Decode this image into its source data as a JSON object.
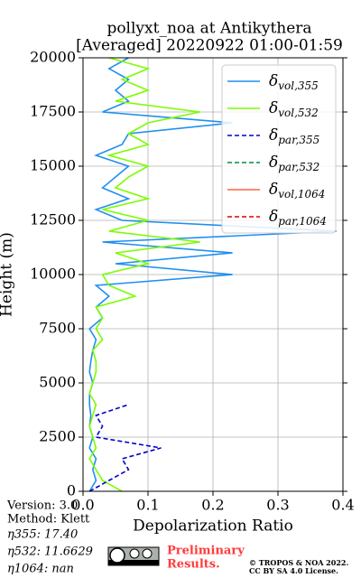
{
  "chart_data": {
    "type": "line",
    "title": "pollyxt_noa at Antikythera",
    "subtitle": "[Averaged] 20220922 01:00-01:59",
    "x_label": "Depolarization Ratio",
    "y_label": "Height (m)",
    "xlim": [
      0,
      0.4
    ],
    "ylim": [
      0,
      20000
    ],
    "xticks": [
      {
        "value": 0,
        "label": "0.0"
      },
      0.1,
      0.2,
      0.3,
      0.4
    ],
    "yticks": [
      0,
      2500,
      5000,
      7500,
      10000,
      12500,
      15000,
      17500,
      20000
    ],
    "grid": true,
    "legend": "upper right",
    "heights": [
      0,
      500,
      1000,
      1500,
      2000,
      2500,
      3000,
      3500,
      4000,
      4500,
      5000,
      5500,
      6000,
      6500,
      7000,
      7500,
      8000,
      8500,
      9000,
      9500,
      10000,
      10500,
      11000,
      11500,
      12000,
      12500,
      13000,
      13500,
      14000,
      14500,
      15000,
      15500,
      16000,
      16500,
      17000,
      17500,
      18000,
      18500,
      19000,
      19500,
      20000
    ],
    "series": [
      {
        "name": "δvol,355",
        "color": "#1f8ff0",
        "dash": "solid",
        "values": [
          0.01,
          0.02,
          0.015,
          0.02,
          0.01,
          0.015,
          0.01,
          0.012,
          0.01,
          0.01,
          0.015,
          0.01,
          0.012,
          0.015,
          0.02,
          0.01,
          0.03,
          0.02,
          0.04,
          0.02,
          0.23,
          0.05,
          0.23,
          0.03,
          0.39,
          0.06,
          0.02,
          0.07,
          0.03,
          0.05,
          0.07,
          0.02,
          0.06,
          0.07,
          0.23,
          0.03,
          0.07,
          0.05,
          0.07,
          0.04,
          0.07
        ]
      },
      {
        "name": "δvol,532",
        "color": "#7cfc00",
        "dash": "solid",
        "values": [
          0.06,
          0.03,
          0.02,
          0.01,
          0.02,
          0.015,
          0.01,
          0.015,
          0.02,
          0.01,
          0.015,
          0.02,
          0.02,
          0.015,
          0.03,
          0.02,
          0.03,
          0.02,
          0.08,
          0.04,
          0.03,
          0.1,
          0.05,
          0.18,
          0.04,
          0.1,
          0.03,
          0.1,
          0.05,
          0.07,
          0.1,
          0.04,
          0.1,
          0.07,
          0.1,
          0.18,
          0.05,
          0.1,
          0.06,
          0.1,
          0.04
        ]
      },
      {
        "name": "δpar,355",
        "color": "#0000cd",
        "dash": "dashed",
        "values": [
          0.01,
          0.04,
          0.07,
          0.06,
          0.12,
          0.02,
          0.03,
          0.02,
          0.07,
          null,
          null,
          null,
          null,
          null,
          null,
          null,
          null,
          null,
          null,
          null,
          null,
          null,
          null,
          null,
          null,
          null,
          null,
          null,
          null,
          null,
          null,
          null,
          null,
          null,
          null,
          null,
          null,
          null,
          null,
          null,
          null
        ]
      },
      {
        "name": "δpar,532",
        "color": "#008b45",
        "dash": "dashed",
        "values": [
          null,
          null,
          null,
          null,
          null,
          null,
          null,
          null,
          null,
          null,
          null,
          null,
          null,
          null,
          null,
          null,
          null,
          null,
          null,
          null,
          null,
          null,
          null,
          null,
          null,
          null,
          null,
          null,
          null,
          null,
          null,
          null,
          null,
          null,
          null,
          null,
          null,
          null,
          null,
          null,
          null
        ]
      },
      {
        "name": "δvol,1064",
        "color": "#ff6347",
        "dash": "solid",
        "values": [
          null,
          null,
          null,
          null,
          null,
          null,
          null,
          null,
          null,
          null,
          null,
          null,
          null,
          null,
          null,
          null,
          null,
          null,
          null,
          null,
          null,
          null,
          null,
          null,
          null,
          null,
          null,
          null,
          null,
          null,
          null,
          null,
          null,
          null,
          null,
          null,
          null,
          null,
          null,
          null,
          null
        ]
      },
      {
        "name": "δpar,1064",
        "color": "#e00000",
        "dash": "dashed",
        "values": [
          null,
          null,
          null,
          null,
          null,
          null,
          null,
          null,
          null,
          null,
          null,
          null,
          null,
          null,
          null,
          null,
          null,
          null,
          null,
          null,
          null,
          null,
          null,
          null,
          null,
          null,
          null,
          null,
          null,
          null,
          null,
          null,
          null,
          null,
          null,
          null,
          null,
          null,
          null,
          null,
          null
        ]
      }
    ]
  },
  "footer": {
    "version": "Version: 3.0",
    "method": "Method: Klett",
    "eta355": "η355:  17.40",
    "eta532": "η532: 11.6629",
    "eta1064": "η1064:    nan",
    "preliminary": "Preliminary",
    "results": "Results.",
    "copyright": "© TROPOS & NOA 2022.",
    "license": "CC BY SA 4.0 License."
  }
}
